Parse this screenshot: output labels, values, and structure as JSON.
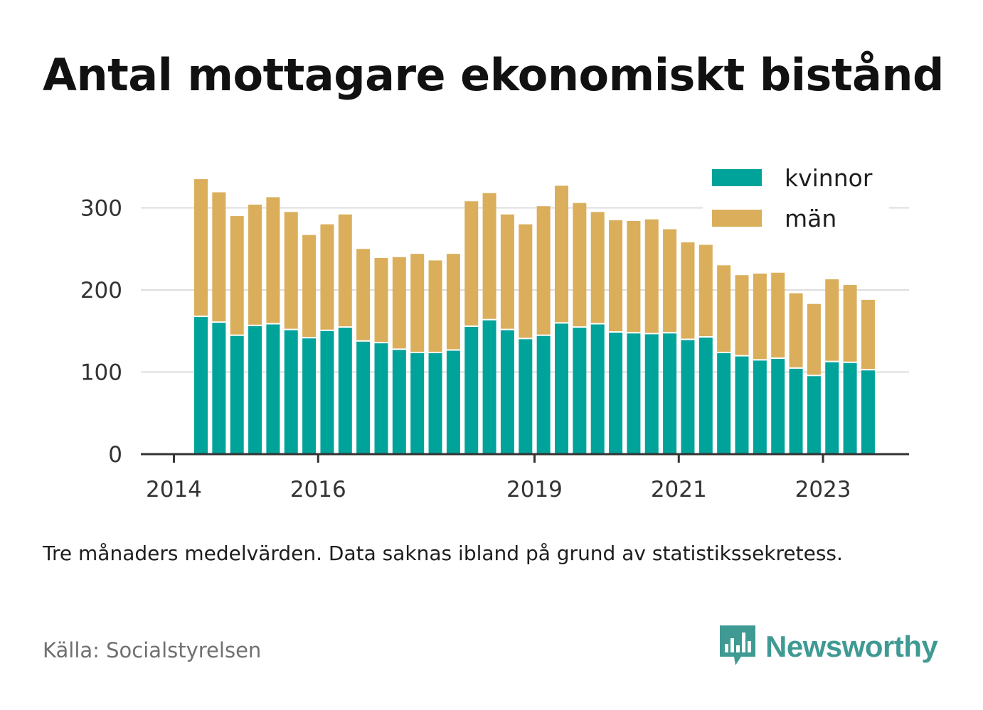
{
  "title": "Antal mottagare ekonomiskt bistånd",
  "subtitle": "Tre månaders medelvärden. Data saknas ibland på grund av statistikssekretess.",
  "source": "Källa: Socialstyrelsen",
  "brand": {
    "name": "Newsworthy",
    "icon": "newsworthy-logo-icon"
  },
  "colors": {
    "kvinnor": "#00a39a",
    "man": "#daae5b",
    "grid": "#dddddd",
    "axis": "#333333"
  },
  "chart_data": {
    "type": "bar",
    "stacked": true,
    "title": "Antal mottagare ekonomiskt bistånd",
    "subtitle": "Tre månaders medelvärden. Data saknas ibland på grund av statistikssekretess.",
    "x_tick_labels": [
      "2014",
      "2016",
      "2019",
      "2021",
      "2023"
    ],
    "x_tick_bar_index": [
      -1,
      7,
      19,
      27,
      35
    ],
    "y_ticks": [
      0,
      100,
      200,
      300
    ],
    "ylim": [
      0,
      345
    ],
    "grid": true,
    "legend_position": "top-right",
    "series": [
      {
        "name": "kvinnor",
        "color": "#00a39a",
        "values": [
          167,
          160,
          144,
          156,
          158,
          151,
          141,
          150,
          154,
          137,
          135,
          127,
          123,
          123,
          126,
          155,
          163,
          151,
          140,
          144,
          159,
          154,
          158,
          148,
          147,
          146,
          147,
          139,
          142,
          123,
          119,
          114,
          116,
          104,
          95,
          112,
          111,
          102
        ]
      },
      {
        "name": "män",
        "color": "#daae5b",
        "values": [
          168,
          159,
          146,
          148,
          155,
          144,
          126,
          130,
          138,
          113,
          104,
          113,
          121,
          113,
          118,
          153,
          155,
          141,
          140,
          158,
          168,
          152,
          137,
          137,
          137,
          140,
          127,
          119,
          113,
          107,
          99,
          106,
          105,
          92,
          88,
          101,
          95,
          86
        ]
      }
    ]
  }
}
